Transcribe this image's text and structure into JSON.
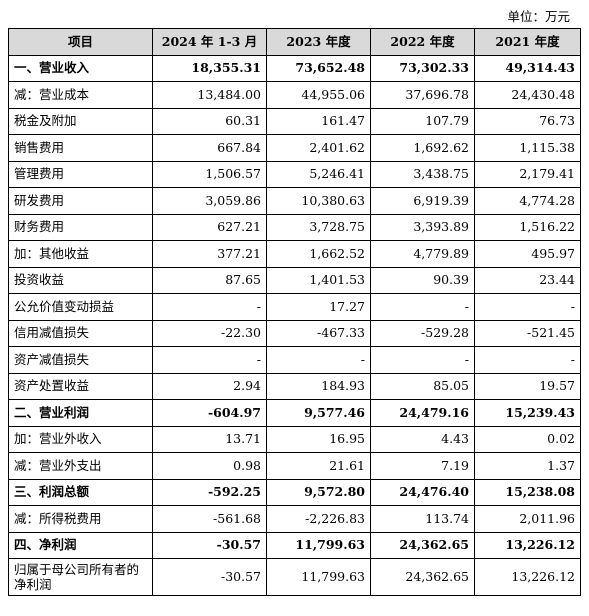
{
  "unit_label": "单位：万元",
  "header": {
    "item": "项目",
    "periods": [
      "2024 年 1-3 月",
      "2023 年度",
      "2022 年度",
      "2021 年度"
    ]
  },
  "rows": [
    {
      "label": "一、营业收入",
      "bold": true,
      "values": [
        "18,355.31",
        "73,652.48",
        "73,302.33",
        "49,314.43"
      ]
    },
    {
      "label": "减：营业成本",
      "bold": false,
      "values": [
        "13,484.00",
        "44,955.06",
        "37,696.78",
        "24,430.48"
      ]
    },
    {
      "label": "税金及附加",
      "bold": false,
      "values": [
        "60.31",
        "161.47",
        "107.79",
        "76.73"
      ]
    },
    {
      "label": "销售费用",
      "bold": false,
      "values": [
        "667.84",
        "2,401.62",
        "1,692.62",
        "1,115.38"
      ]
    },
    {
      "label": "管理费用",
      "bold": false,
      "values": [
        "1,506.57",
        "5,246.41",
        "3,438.75",
        "2,179.41"
      ]
    },
    {
      "label": "研发费用",
      "bold": false,
      "values": [
        "3,059.86",
        "10,380.63",
        "6,919.39",
        "4,774.28"
      ]
    },
    {
      "label": "财务费用",
      "bold": false,
      "values": [
        "627.21",
        "3,728.75",
        "3,393.89",
        "1,516.22"
      ]
    },
    {
      "label": "加：其他收益",
      "bold": false,
      "values": [
        "377.21",
        "1,662.52",
        "4,779.89",
        "495.97"
      ]
    },
    {
      "label": "投资收益",
      "bold": false,
      "values": [
        "87.65",
        "1,401.53",
        "90.39",
        "23.44"
      ]
    },
    {
      "label": "公允价值变动损益",
      "bold": false,
      "values": [
        "-",
        "17.27",
        "-",
        "-"
      ]
    },
    {
      "label": "信用减值损失",
      "bold": false,
      "values": [
        "-22.30",
        "-467.33",
        "-529.28",
        "-521.45"
      ]
    },
    {
      "label": "资产减值损失",
      "bold": false,
      "values": [
        "-",
        "-",
        "-",
        "-"
      ]
    },
    {
      "label": "资产处置收益",
      "bold": false,
      "values": [
        "2.94",
        "184.93",
        "85.05",
        "19.57"
      ]
    },
    {
      "label": "二、营业利润",
      "bold": true,
      "values": [
        "-604.97",
        "9,577.46",
        "24,479.16",
        "15,239.43"
      ]
    },
    {
      "label": "加：营业外收入",
      "bold": false,
      "values": [
        "13.71",
        "16.95",
        "4.43",
        "0.02"
      ]
    },
    {
      "label": "减：营业外支出",
      "bold": false,
      "values": [
        "0.98",
        "21.61",
        "7.19",
        "1.37"
      ]
    },
    {
      "label": "三、利润总额",
      "bold": true,
      "values": [
        "-592.25",
        "9,572.80",
        "24,476.40",
        "15,238.08"
      ]
    },
    {
      "label": "减：所得税费用",
      "bold": false,
      "values": [
        "-561.68",
        "-2,226.83",
        "113.74",
        "2,011.96"
      ]
    },
    {
      "label": "四、净利润",
      "bold": true,
      "values": [
        "-30.57",
        "11,799.63",
        "24,362.65",
        "13,226.12"
      ]
    },
    {
      "label": "归属于母公司所有者的净利润",
      "bold": false,
      "tall": true,
      "values": [
        "-30.57",
        "11,799.63",
        "24,362.65",
        "13,226.12"
      ]
    }
  ]
}
